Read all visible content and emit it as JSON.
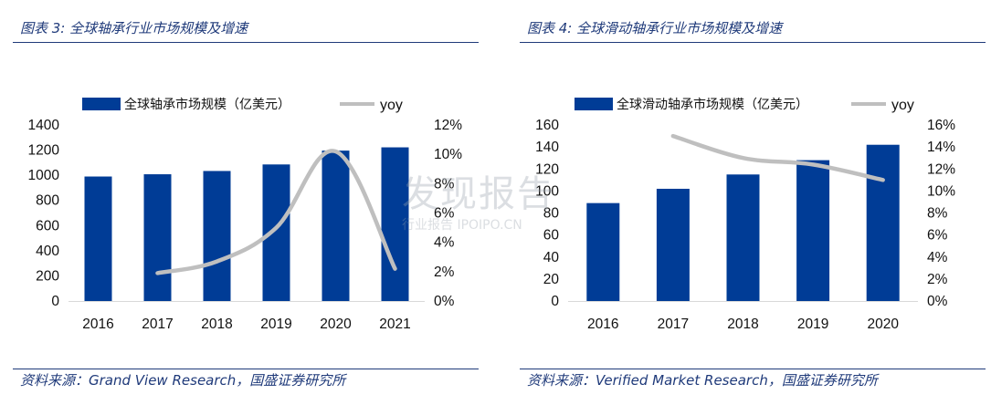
{
  "colors": {
    "bar": "#003c96",
    "line": "#bfbfbf",
    "accent": "#1f3a7a"
  },
  "panels": [
    {
      "title": "图表 3:  全球轴承行业市场规模及增速",
      "source": "资料来源：Grand View Research，国盛证券研究所",
      "legend": {
        "bar": "全球轴承市场规模（亿美元）",
        "line": "yoy"
      }
    },
    {
      "title": "图表 4:  全球滑动轴承行业市场规模及增速",
      "source": "资料来源：Verified Market Research，国盛证券研究所",
      "legend": {
        "bar": "全球滑动轴承市场规模（亿美元）",
        "line": "yoy"
      }
    }
  ],
  "watermark": {
    "main": "发现报告",
    "sub": "行业报告 IPOIPO.CN"
  },
  "chart_data": [
    {
      "type": "bar",
      "categories": [
        "2016",
        "2017",
        "2018",
        "2019",
        "2020",
        "2021"
      ],
      "series": [
        {
          "name": "全球轴承市场规模（亿美元）",
          "type": "bar",
          "axis": "left",
          "values": [
            990,
            1008,
            1034,
            1086,
            1196,
            1222
          ]
        },
        {
          "name": "yoy",
          "type": "line",
          "axis": "right",
          "smooth": true,
          "values": [
            null,
            0.019,
            0.027,
            0.05,
            0.102,
            0.022
          ]
        }
      ],
      "ylim_left": [
        0,
        1400
      ],
      "yticks_left": [
        0,
        200,
        400,
        600,
        800,
        1000,
        1200,
        1400
      ],
      "ylim_right": [
        0,
        0.12
      ],
      "yticks_right": [
        "0%",
        "2%",
        "4%",
        "6%",
        "8%",
        "10%",
        "12%"
      ],
      "grid": false,
      "legend_position": "top"
    },
    {
      "type": "bar",
      "categories": [
        "2016",
        "2017",
        "2018",
        "2019",
        "2020"
      ],
      "series": [
        {
          "name": "全球滑动轴承市场规模（亿美元）",
          "type": "bar",
          "axis": "left",
          "values": [
            89,
            102,
            115,
            128,
            142
          ]
        },
        {
          "name": "yoy",
          "type": "line",
          "axis": "right",
          "smooth": true,
          "values": [
            null,
            0.15,
            0.13,
            0.124,
            0.11
          ]
        }
      ],
      "ylim_left": [
        0,
        160
      ],
      "yticks_left": [
        0,
        20,
        40,
        60,
        80,
        100,
        120,
        140,
        160
      ],
      "ylim_right": [
        0,
        0.16
      ],
      "yticks_right": [
        "0%",
        "2%",
        "4%",
        "6%",
        "8%",
        "10%",
        "12%",
        "14%",
        "16%"
      ],
      "grid": false,
      "legend_position": "top"
    }
  ]
}
